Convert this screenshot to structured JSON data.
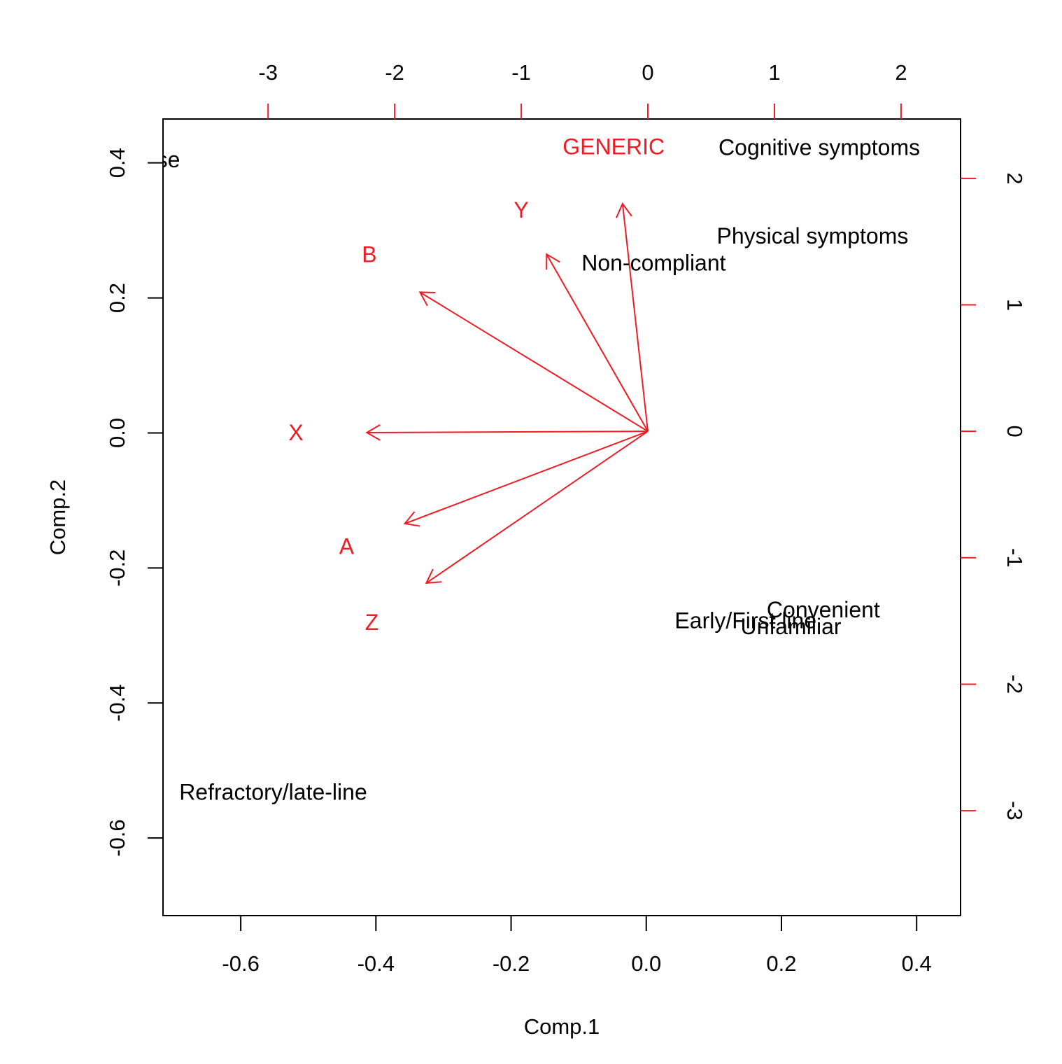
{
  "chart_data": {
    "type": "biplot",
    "colors": {
      "scores": "#000000",
      "loadings": "#ee1c25",
      "background": "#ffffff"
    },
    "axes": {
      "bottom": {
        "label": "Comp.1",
        "range": [
          -0.715,
          0.465
        ],
        "ticks": [
          -0.6,
          -0.4,
          -0.2,
          0.0,
          0.2,
          0.4
        ],
        "tick_labels": [
          "-0.6",
          "-0.4",
          "-0.2",
          "0.0",
          "0.2",
          "0.4"
        ]
      },
      "left": {
        "label": "Comp.2",
        "range": [
          -0.715,
          0.465
        ],
        "ticks": [
          -0.6,
          -0.4,
          -0.2,
          0.0,
          0.2,
          0.4
        ],
        "tick_labels": [
          "-0.6",
          "-0.4",
          "-0.2",
          "0.0",
          "0.2",
          "0.4"
        ]
      },
      "top": {
        "range": [
          -3.83,
          2.47
        ],
        "ticks": [
          -3,
          -2,
          -1,
          0,
          1,
          2
        ],
        "tick_labels": [
          "-3",
          "-2",
          "-1",
          "0",
          "1",
          "2"
        ]
      },
      "right": {
        "range": [
          -3.83,
          2.47
        ],
        "ticks": [
          -3,
          -2,
          -1,
          0,
          1,
          2
        ],
        "tick_labels": [
          "-3",
          "-2",
          "-1",
          "0",
          "1",
          "2"
        ]
      }
    },
    "scores": [
      {
        "label": "General use",
        "x": -0.78,
        "y": 0.405
      },
      {
        "label": "Cognitive symptoms",
        "x": 0.256,
        "y": 0.423
      },
      {
        "label": "Physical symptoms",
        "x": 0.246,
        "y": 0.292
      },
      {
        "label": "Non-compliant",
        "x": 0.011,
        "y": 0.252
      },
      {
        "label": "Convenient",
        "x": 0.262,
        "y": -0.262
      },
      {
        "label": "Early/First line",
        "x": 0.147,
        "y": -0.278
      },
      {
        "label": "Unfamiliar",
        "x": 0.214,
        "y": -0.287
      },
      {
        "label": "Refractory/late-line",
        "x": -0.552,
        "y": -0.532
      }
    ],
    "loadings": [
      {
        "label": "GENERIC",
        "x": -0.2,
        "y": 1.8,
        "label_x": -0.27,
        "label_y": 2.25
      },
      {
        "label": "Y",
        "x": -0.8,
        "y": 1.4,
        "label_x": -1.0,
        "label_y": 1.75
      },
      {
        "label": "B",
        "x": -1.8,
        "y": 1.1,
        "label_x": -2.2,
        "label_y": 1.4
      },
      {
        "label": "X",
        "x": -2.22,
        "y": -0.01,
        "label_x": -2.78,
        "label_y": -0.01
      },
      {
        "label": "A",
        "x": -1.92,
        "y": -0.73,
        "label_x": -2.38,
        "label_y": -0.91
      },
      {
        "label": "Z",
        "x": -1.75,
        "y": -1.2,
        "label_x": -2.18,
        "label_y": -1.51
      }
    ]
  }
}
